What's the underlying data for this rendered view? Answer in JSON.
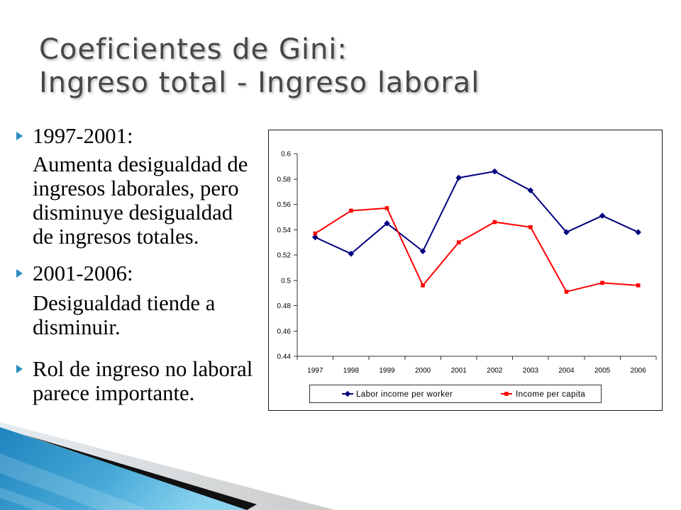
{
  "slide": {
    "title_lines": [
      "Coeficientes de Gini:",
      "Ingreso total - Ingreso laboral"
    ],
    "accent_color": "#2b8cbe",
    "bullet_icon": "triangle-right-icon"
  },
  "bullets": [
    {
      "lines": [
        "1997-2001:"
      ],
      "detail_lines": [
        "Aumenta desigualdad de",
        "ingresos laborales, pero",
        "disminuye desigualdad",
        "de ingresos totales."
      ]
    },
    {
      "lines": [
        "2001-2006:"
      ],
      "detail_lines": [
        "Desigualdad tiende a",
        "disminuir."
      ]
    },
    {
      "lines": [
        "Rol de ingreso no laboral",
        "parece importante."
      ]
    }
  ],
  "chart_data": {
    "type": "line",
    "categories": [
      "1997",
      "1998",
      "1999",
      "2000",
      "2001",
      "2002",
      "2003",
      "2004",
      "2005",
      "2006"
    ],
    "series": [
      {
        "name": "Labor income per worker",
        "color": "#000080",
        "marker": "diamond",
        "values": [
          0.534,
          0.521,
          0.545,
          0.523,
          0.581,
          0.586,
          0.571,
          0.538,
          0.551,
          0.538
        ]
      },
      {
        "name": "Income per capita",
        "color": "#ff0000",
        "marker": "square",
        "values": [
          0.537,
          0.555,
          0.557,
          0.496,
          0.53,
          0.546,
          0.542,
          0.491,
          0.498,
          0.496
        ]
      }
    ],
    "ylim": [
      0.44,
      0.6
    ],
    "yticks": [
      0.6,
      0.58,
      0.56,
      0.54,
      0.52,
      0.5,
      0.48,
      0.46,
      0.44
    ],
    "grid": false,
    "legend": "bottom"
  }
}
